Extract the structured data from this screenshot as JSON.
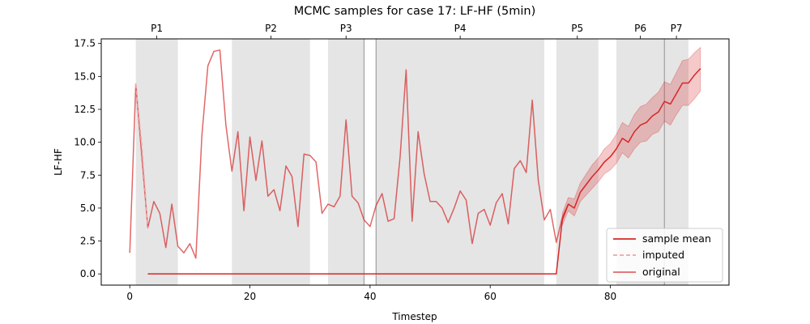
{
  "chart_data": {
    "type": "line",
    "title": "MCMC samples for case 17: LF-HF (5min)",
    "xlabel": "Timestep",
    "ylabel": "LF-HF",
    "xlim": [
      -4.75,
      99.75
    ],
    "ylim": [
      -0.85,
      17.85
    ],
    "xticks": [
      0,
      20,
      40,
      60,
      80
    ],
    "yticks": [
      0.0,
      2.5,
      5.0,
      7.5,
      10.0,
      12.5,
      15.0,
      17.5
    ],
    "ytick_labels": [
      "0.0",
      "2.5",
      "5.0",
      "7.5",
      "10.0",
      "12.5",
      "15.0",
      "17.5"
    ],
    "grid": false,
    "legend_position": "lower-right",
    "periods": [
      {
        "label": "P1",
        "start": 1,
        "end": 8
      },
      {
        "label": "P2",
        "start": 17,
        "end": 30
      },
      {
        "label": "P3",
        "start": 33,
        "end": 39
      },
      {
        "label": "P4",
        "start": 41,
        "end": 69
      },
      {
        "label": "P5",
        "start": 71,
        "end": 78
      },
      {
        "label": "P6",
        "start": 81,
        "end": 89
      },
      {
        "label": "P7",
        "start": 89,
        "end": 93
      }
    ],
    "vlines": [
      39,
      41,
      89
    ],
    "series": [
      {
        "name": "original",
        "color": "#d62728",
        "points": [
          [
            0,
            1.6
          ],
          [
            1,
            14.4
          ],
          [
            3,
            3.5
          ],
          [
            4,
            5.5
          ],
          [
            5,
            4.6
          ],
          [
            6,
            2.0
          ],
          [
            7,
            5.3
          ],
          [
            8,
            2.1
          ],
          [
            9,
            1.6
          ],
          [
            10,
            2.3
          ],
          [
            11,
            1.2
          ],
          [
            12,
            10.5
          ],
          [
            13,
            15.8
          ],
          [
            14,
            16.9
          ],
          [
            15,
            17.0
          ],
          [
            16,
            11.3
          ],
          [
            17,
            7.8
          ],
          [
            18,
            10.8
          ],
          [
            19,
            4.8
          ],
          [
            20,
            10.4
          ],
          [
            21,
            7.1
          ],
          [
            22,
            10.1
          ],
          [
            23,
            5.9
          ],
          [
            24,
            6.4
          ],
          [
            25,
            4.8
          ],
          [
            26,
            8.2
          ],
          [
            27,
            7.4
          ],
          [
            28,
            3.6
          ],
          [
            29,
            9.1
          ],
          [
            30,
            9.0
          ],
          [
            31,
            8.5
          ],
          [
            32,
            4.6
          ],
          [
            33,
            5.3
          ],
          [
            34,
            5.1
          ],
          [
            35,
            5.9
          ],
          [
            36,
            11.7
          ],
          [
            37,
            5.9
          ],
          [
            38,
            5.4
          ],
          [
            39,
            4.1
          ],
          [
            40,
            3.6
          ],
          [
            41,
            5.2
          ],
          [
            42,
            6.1
          ],
          [
            43,
            4.0
          ],
          [
            44,
            4.2
          ],
          [
            45,
            8.9
          ],
          [
            46,
            15.5
          ],
          [
            47,
            4.0
          ],
          [
            48,
            10.8
          ],
          [
            49,
            7.6
          ],
          [
            50,
            5.5
          ],
          [
            51,
            5.5
          ],
          [
            52,
            5.0
          ],
          [
            53,
            3.9
          ],
          [
            54,
            5.0
          ],
          [
            55,
            6.3
          ],
          [
            56,
            5.6
          ],
          [
            57,
            2.3
          ],
          [
            58,
            4.6
          ],
          [
            59,
            4.9
          ],
          [
            60,
            3.7
          ],
          [
            61,
            5.4
          ],
          [
            62,
            6.1
          ],
          [
            63,
            3.8
          ],
          [
            64,
            8.0
          ],
          [
            65,
            8.6
          ],
          [
            66,
            7.7
          ],
          [
            67,
            13.2
          ],
          [
            68,
            7.1
          ],
          [
            69,
            4.1
          ],
          [
            70,
            4.9
          ],
          [
            71,
            2.4
          ],
          [
            72,
            4.3
          ],
          [
            73,
            5.3
          ]
        ]
      },
      {
        "name": "imputed",
        "color": "#f0a3a3",
        "points": [
          [
            1,
            14.4
          ],
          [
            2,
            9.7
          ],
          [
            3,
            3.5
          ]
        ]
      },
      {
        "name": "sample mean",
        "color": "#d62728",
        "points": [
          [
            3,
            0
          ],
          [
            71,
            0
          ],
          [
            72,
            4.1
          ],
          [
            73,
            5.3
          ],
          [
            74,
            5.0
          ],
          [
            75,
            6.2
          ],
          [
            76,
            6.8
          ],
          [
            77,
            7.4
          ],
          [
            78,
            7.9
          ],
          [
            79,
            8.5
          ],
          [
            80,
            8.9
          ],
          [
            81,
            9.5
          ],
          [
            82,
            10.3
          ],
          [
            83,
            10.0
          ],
          [
            84,
            10.8
          ],
          [
            85,
            11.3
          ],
          [
            86,
            11.5
          ],
          [
            87,
            12.0
          ],
          [
            88,
            12.3
          ],
          [
            89,
            13.1
          ],
          [
            90,
            12.9
          ],
          [
            91,
            13.7
          ],
          [
            92,
            14.5
          ],
          [
            93,
            14.5
          ],
          [
            94,
            15.1
          ],
          [
            95,
            15.6
          ]
        ],
        "band": [
          [
            72,
            3.7,
            4.6
          ],
          [
            73,
            4.8,
            5.8
          ],
          [
            74,
            4.4,
            5.7
          ],
          [
            75,
            5.5,
            6.9
          ],
          [
            76,
            6.0,
            7.6
          ],
          [
            77,
            6.5,
            8.3
          ],
          [
            78,
            7.0,
            8.8
          ],
          [
            79,
            7.6,
            9.5
          ],
          [
            80,
            7.9,
            9.9
          ],
          [
            81,
            8.4,
            10.6
          ],
          [
            82,
            9.2,
            11.5
          ],
          [
            83,
            8.8,
            11.2
          ],
          [
            84,
            9.5,
            12.1
          ],
          [
            85,
            10.0,
            12.7
          ],
          [
            86,
            10.1,
            12.9
          ],
          [
            87,
            10.6,
            13.4
          ],
          [
            88,
            10.8,
            13.8
          ],
          [
            89,
            11.6,
            14.6
          ],
          [
            90,
            11.3,
            14.4
          ],
          [
            91,
            12.1,
            15.3
          ],
          [
            92,
            12.8,
            16.2
          ],
          [
            93,
            12.8,
            16.3
          ],
          [
            94,
            13.3,
            16.8
          ],
          [
            95,
            13.9,
            17.2
          ]
        ]
      }
    ],
    "legend": [
      "sample mean",
      "imputed",
      "original"
    ]
  }
}
